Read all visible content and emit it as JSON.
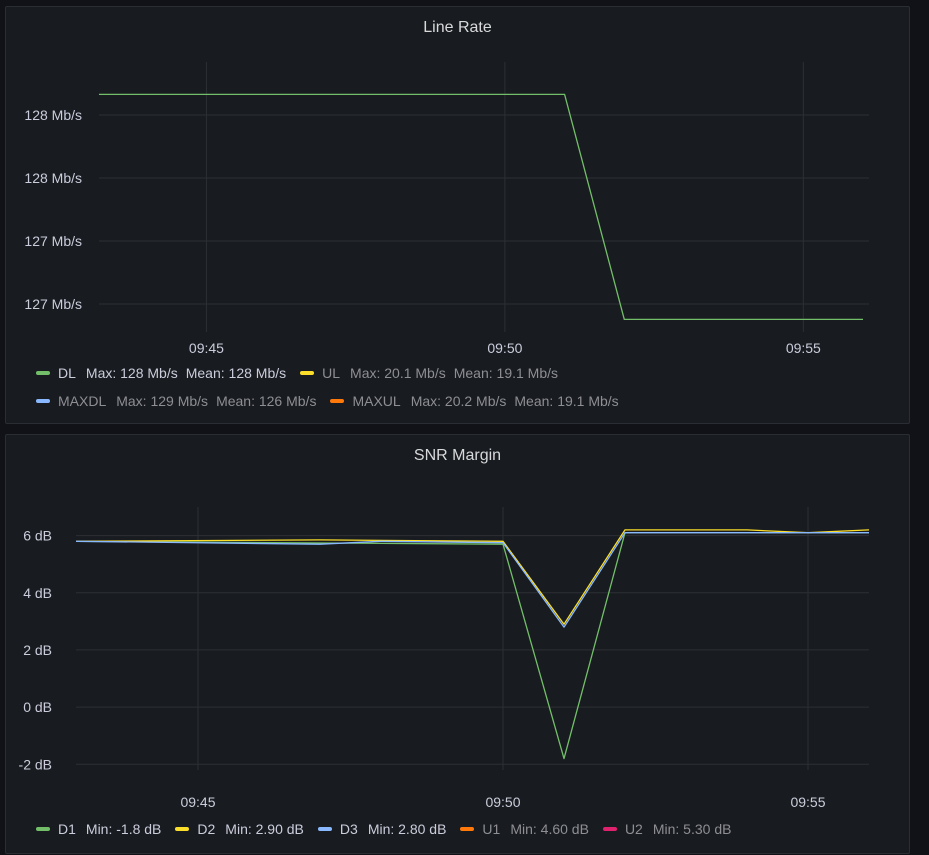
{
  "chart_data": [
    {
      "type": "line",
      "title": "Line Rate",
      "y_ticks": [
        "128 Mb/s",
        "128 Mb/s",
        "127 Mb/s",
        "127 Mb/s"
      ],
      "x_ticks": [
        {
          "label": "09:45",
          "minute": 45
        },
        {
          "label": "09:50",
          "minute": 50
        },
        {
          "label": "09:55",
          "minute": 55
        }
      ],
      "x_range": [
        43.2,
        56.1
      ],
      "y_range": [
        126.8,
        128.3
      ],
      "grid": true,
      "legend_placement": "bottom",
      "series": [
        {
          "name": "DL",
          "color": "#73bf69",
          "dim": false,
          "x": [
            43.2,
            51.0,
            52.0,
            56.0
          ],
          "y": [
            128.12,
            128.12,
            126.87,
            126.87
          ],
          "stats": [
            "Max: 128 Mb/s",
            "Mean: 128 Mb/s"
          ]
        },
        {
          "name": "UL",
          "color": "#fade2a",
          "dim": true,
          "stats": [
            "Max: 20.1 Mb/s",
            "Mean: 19.1 Mb/s"
          ]
        },
        {
          "name": "MAXDL",
          "color": "#8ab8ff",
          "dim": true,
          "stats": [
            "Max: 129 Mb/s",
            "Mean: 126 Mb/s"
          ]
        },
        {
          "name": "MAXUL",
          "color": "#ff780a",
          "dim": true,
          "stats": [
            "Max: 20.2 Mb/s",
            "Mean: 19.1 Mb/s"
          ]
        }
      ],
      "legend_rows": [
        [
          0,
          1
        ],
        [
          2,
          3
        ]
      ]
    },
    {
      "type": "line",
      "title": "SNR Margin",
      "y_ticks": [
        "6 dB",
        "4 dB",
        "2 dB",
        "0 dB",
        "-2 dB"
      ],
      "y_tick_values": [
        6,
        4,
        2,
        0,
        -2
      ],
      "x_ticks": [
        {
          "label": "09:45",
          "minute": 45
        },
        {
          "label": "09:50",
          "minute": 50
        },
        {
          "label": "09:55",
          "minute": 55
        }
      ],
      "x_range": [
        43.0,
        56.0
      ],
      "y_range": [
        -2.2,
        7.0
      ],
      "grid": true,
      "legend_placement": "bottom",
      "series": [
        {
          "name": "D1",
          "color": "#73bf69",
          "dim": false,
          "x": [
            43.0,
            50.0,
            51.0,
            52.0,
            56.0
          ],
          "y": [
            5.8,
            5.7,
            -1.8,
            6.1,
            6.1
          ],
          "stats": [
            "Min: -1.8 dB"
          ]
        },
        {
          "name": "D2",
          "color": "#fade2a",
          "dim": false,
          "x": [
            43.0,
            47.0,
            50.0,
            51.0,
            52.0,
            54.0,
            55.0,
            56.0
          ],
          "y": [
            5.8,
            5.85,
            5.8,
            2.9,
            6.2,
            6.2,
            6.1,
            6.2
          ],
          "stats": [
            "Min: 2.90 dB"
          ]
        },
        {
          "name": "D3",
          "color": "#8ab8ff",
          "dim": false,
          "x": [
            43.0,
            47.0,
            48.0,
            50.0,
            51.0,
            52.0,
            56.0
          ],
          "y": [
            5.8,
            5.7,
            5.8,
            5.75,
            2.8,
            6.1,
            6.1
          ],
          "stats": [
            "Min: 2.80 dB"
          ]
        },
        {
          "name": "U1",
          "color": "#ff780a",
          "dim": true,
          "stats": [
            "Min: 4.60 dB"
          ]
        },
        {
          "name": "U2",
          "color": "#e0226e",
          "dim": true,
          "stats": [
            "Min: 5.30 dB"
          ]
        }
      ],
      "legend_rows": [
        [
          0,
          1,
          2,
          3,
          4
        ]
      ]
    }
  ]
}
